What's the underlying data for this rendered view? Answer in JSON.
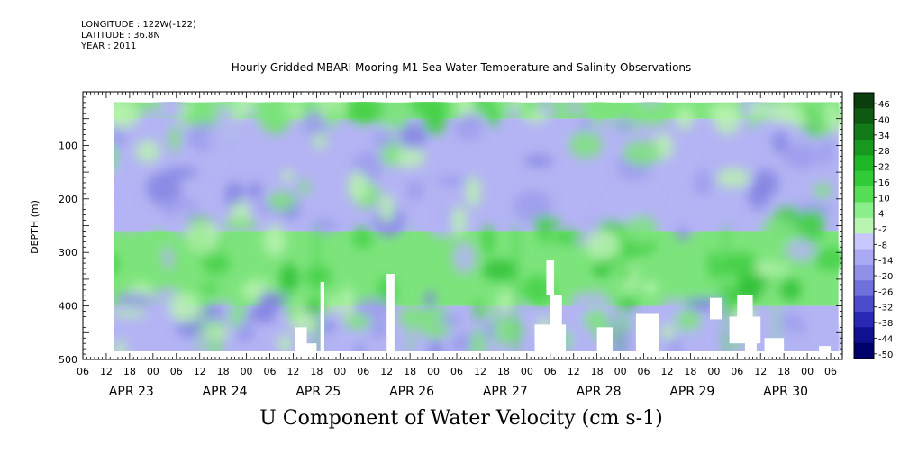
{
  "header": {
    "longitude": "LONGITUDE : 122W(-122)",
    "latitude": "LATITUDE : 36.8N",
    "year": "YEAR : 2011",
    "title": "Hourly Gridded MBARI Mooring M1 Sea Water Temperature and Salinity Observations"
  },
  "chart_data": {
    "type": "heatmap",
    "title": "Hourly Gridded MBARI Mooring M1 Sea Water Temperature and Salinity Observations",
    "xlabel": "U Component of Water Velocity (cm s-1)",
    "ylabel": "DEPTH (m)",
    "ylim": [
      500,
      0
    ],
    "y_ticks": [
      100,
      200,
      300,
      400,
      500
    ],
    "x_hour_ticks": [
      "06",
      "12",
      "18",
      "00",
      "06",
      "12",
      "18",
      "00",
      "06",
      "12",
      "18",
      "00",
      "06",
      "12",
      "18",
      "00",
      "06",
      "12",
      "18",
      "00",
      "06",
      "12",
      "18",
      "00",
      "06",
      "12",
      "18",
      "00",
      "06",
      "12",
      "18",
      "00",
      "06"
    ],
    "x_day_labels": [
      "APR 23",
      "APR 24",
      "APR 25",
      "APR 26",
      "APR 27",
      "APR 28",
      "APR 29",
      "APR 30"
    ],
    "x_range_hours": [
      "2011-04-22T06:00",
      "2011-04-30T09:00"
    ],
    "data_extent": {
      "time_start": "2011-04-22T12:00",
      "time_end": "2011-04-30T08:00",
      "depth_top": 20,
      "depth_bottom": 490
    },
    "colorbar": {
      "levels": [
        46,
        40,
        34,
        28,
        22,
        16,
        10,
        4,
        -2,
        -8,
        -14,
        -20,
        -26,
        -32,
        -38,
        -44,
        -50
      ],
      "colors": [
        "#0c3d0c",
        "#0f5a12",
        "#127a18",
        "#17991f",
        "#1fb728",
        "#32cc38",
        "#55dd55",
        "#8aee8a",
        "#b7f5b0",
        "#c8c8ff",
        "#aaaaf2",
        "#9090e8",
        "#7070dc",
        "#4b4bcc",
        "#2828b4",
        "#101090",
        "#00006a"
      ]
    },
    "bands": [
      {
        "depth_range": [
          20,
          50
        ],
        "typical_value": 12,
        "color": "green"
      },
      {
        "depth_range": [
          50,
          260
        ],
        "typical_value": -12,
        "color": "blue-violet"
      },
      {
        "depth_range": [
          260,
          400
        ],
        "typical_value": 10,
        "color": "green"
      },
      {
        "depth_range": [
          400,
          490
        ],
        "typical_value": -10,
        "color": "blue-violet"
      }
    ]
  }
}
